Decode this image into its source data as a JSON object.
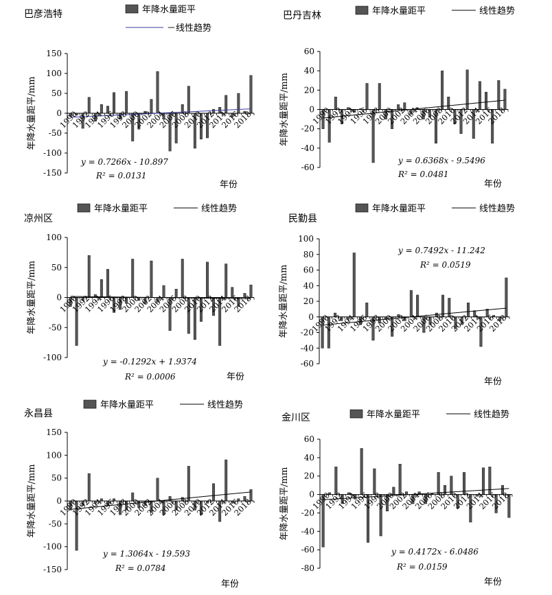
{
  "legend": {
    "bar_label": "年降水量距平",
    "trend_label": "线性趋势",
    "trend_label_alt": "－线性趋势"
  },
  "chart_data": [
    {
      "type": "bar",
      "title": "巴彦浩特",
      "xlabel": "年份",
      "ylabel": "年降水量距平/mm",
      "ylim": [
        -150,
        150
      ],
      "yticks": [
        150,
        100,
        50,
        0,
        -50,
        -100,
        -150
      ],
      "xtick_labels": [
        "1990",
        "1992",
        "1994",
        "1996",
        "1998",
        "2000",
        "2002",
        "2004",
        "2006",
        "2008",
        "2010",
        "2012",
        "2014",
        "2016",
        "2018"
      ],
      "years": [
        1990,
        1991,
        1992,
        1993,
        1994,
        1995,
        1996,
        1997,
        1998,
        1999,
        2000,
        2001,
        2002,
        2003,
        2004,
        2005,
        2006,
        2007,
        2008,
        2009,
        2010,
        2011,
        2012,
        2013,
        2014,
        2015,
        2016,
        2017,
        2018,
        2019
      ],
      "values": [
        -8,
        -5,
        -38,
        40,
        -20,
        22,
        18,
        52,
        -15,
        55,
        -70,
        -40,
        5,
        35,
        105,
        -15,
        -95,
        -75,
        22,
        68,
        -88,
        -65,
        -62,
        10,
        15,
        45,
        -10,
        50,
        5,
        95
      ],
      "equation": "y = 0.7266x - 10.897",
      "r2": "R² = 0.0131",
      "trend": {
        "slope": 0.7266,
        "intercept": -10.897
      },
      "legend_trend_dash": true
    },
    {
      "type": "bar",
      "title": "巴丹吉林",
      "xlabel": "年份",
      "ylabel": "年降水量距平/mm",
      "ylim": [
        -60,
        60
      ],
      "yticks": [
        60,
        40,
        20,
        0,
        -20,
        -40,
        -60
      ],
      "xtick_labels": [
        "1990",
        "1992",
        "1994",
        "1996",
        "1998",
        "2000",
        "2002",
        "2004",
        "2006",
        "2008",
        "2010",
        "2012",
        "2014",
        "2016",
        "2018"
      ],
      "years": [
        1990,
        1991,
        1992,
        1993,
        1994,
        1995,
        1996,
        1997,
        1998,
        1999,
        2000,
        2001,
        2002,
        2003,
        2004,
        2005,
        2006,
        2007,
        2008,
        2009,
        2010,
        2011,
        2012,
        2013,
        2014,
        2015,
        2016,
        2017,
        2018,
        2019
      ],
      "values": [
        -20,
        -34,
        13,
        -15,
        2,
        -3,
        1,
        27,
        -55,
        27,
        -10,
        -20,
        5,
        7,
        -5,
        2,
        -10,
        -8,
        -35,
        40,
        13,
        -15,
        -25,
        41,
        -30,
        29,
        18,
        -35,
        30,
        21
      ],
      "equation": "y = 0.6368x - 9.5496",
      "r2": "R² = 0.0481",
      "trend": {
        "slope": 0.6368,
        "intercept": -9.5496
      },
      "legend_trend_dash": false
    },
    {
      "type": "bar",
      "title": "凉州区",
      "xlabel": "年份",
      "ylabel": "年降水量距平/mm",
      "ylim": [
        -100,
        100
      ],
      "yticks": [
        100,
        50,
        0,
        -50,
        -100
      ],
      "xtick_labels": [
        "1990",
        "1992",
        "1994",
        "1996",
        "1998",
        "2000",
        "2002",
        "2004",
        "2006",
        "2008",
        "2010",
        "2012",
        "2014",
        "2016",
        "2018"
      ],
      "years": [
        1990,
        1991,
        1992,
        1993,
        1994,
        1995,
        1996,
        1997,
        1998,
        1999,
        2000,
        2001,
        2002,
        2003,
        2004,
        2005,
        2006,
        2007,
        2008,
        2009,
        2010,
        2011,
        2012,
        2013,
        2014,
        2015,
        2016,
        2017,
        2018,
        2019
      ],
      "values": [
        -15,
        -80,
        -5,
        70,
        5,
        30,
        47,
        -25,
        -20,
        -10,
        64,
        -5,
        -10,
        61,
        -8,
        20,
        -55,
        14,
        64,
        -60,
        -70,
        -40,
        59,
        -30,
        -80,
        56,
        17,
        -15,
        7,
        21
      ],
      "equation": "y = -0.1292x + 1.9374",
      "r2": "R² = 0.0006",
      "trend": {
        "slope": -0.1292,
        "intercept": 1.9374
      },
      "legend_trend_dash": false
    },
    {
      "type": "bar",
      "title": "民勤县",
      "xlabel": "年份",
      "ylabel": "年降水量距平/mm",
      "ylim": [
        -60,
        100
      ],
      "yticks": [
        100,
        80,
        60,
        40,
        20,
        0,
        -20,
        -40,
        -60
      ],
      "xtick_labels": [
        "1990",
        "1992",
        "1994",
        "1996",
        "1998",
        "2000",
        "2002",
        "2004",
        "2006",
        "2008",
        "2010",
        "2012",
        "2014",
        "2016",
        "2018"
      ],
      "years": [
        1990,
        1991,
        1992,
        1993,
        1994,
        1995,
        1996,
        1997,
        1998,
        1999,
        2000,
        2001,
        2002,
        2003,
        2004,
        2005,
        2006,
        2007,
        2008,
        2009,
        2010,
        2011,
        2012,
        2013,
        2014,
        2015,
        2016,
        2017,
        2018,
        2019
      ],
      "values": [
        -40,
        -40,
        5,
        -5,
        -3,
        82,
        -10,
        18,
        -30,
        -8,
        -3,
        -25,
        3,
        -5,
        34,
        28,
        -20,
        -10,
        5,
        28,
        24,
        -15,
        -10,
        18,
        8,
        -38,
        10,
        2,
        -5,
        50
      ],
      "equation": "y = 0.7492x - 11.242",
      "r2": "R² = 0.0519",
      "trend": {
        "slope": 0.7492,
        "intercept": -11.242
      },
      "legend_trend_dash": false
    },
    {
      "type": "bar",
      "title": "永昌县",
      "xlabel": "年份",
      "ylabel": "年降水量距平/mm",
      "ylim": [
        -150,
        150
      ],
      "yticks": [
        150,
        100,
        50,
        0,
        -50,
        -100,
        -150
      ],
      "xtick_labels": [
        "1990",
        "1992",
        "1994",
        "1996",
        "1998",
        "2000",
        "2002",
        "2004",
        "2006",
        "2008",
        "2010",
        "2012",
        "2014",
        "2016",
        "2018"
      ],
      "years": [
        1990,
        1991,
        1992,
        1993,
        1994,
        1995,
        1996,
        1997,
        1998,
        1999,
        2000,
        2001,
        2002,
        2003,
        2004,
        2005,
        2006,
        2007,
        2008,
        2009,
        2010,
        2011,
        2012,
        2013,
        2014,
        2015,
        2016,
        2017,
        2018,
        2019
      ],
      "values": [
        -20,
        -108,
        -10,
        60,
        -5,
        5,
        -10,
        5,
        -30,
        -20,
        18,
        -15,
        -10,
        -25,
        50,
        -30,
        10,
        -20,
        8,
        76,
        -20,
        -30,
        -5,
        38,
        -45,
        90,
        -5,
        5,
        10,
        25
      ],
      "equation": "y = 1.3064x - 19.593",
      "r2": "R² = 0.0784",
      "trend": {
        "slope": 1.3064,
        "intercept": -19.593
      },
      "legend_trend_dash": false
    },
    {
      "type": "bar",
      "title": "金川区",
      "xlabel": "年份",
      "ylabel": "年降水量距平/mm",
      "ylim": [
        -80,
        60
      ],
      "yticks": [
        60,
        40,
        20,
        0,
        -20,
        -40,
        -60,
        -80
      ],
      "xtick_labels": [
        "1990",
        "1992",
        "1994",
        "1996",
        "1998",
        "2000",
        "2002",
        "2004",
        "2006",
        "2008",
        "2010",
        "2012",
        "2014",
        "2016",
        "2018"
      ],
      "years": [
        1990,
        1991,
        1992,
        1993,
        1994,
        1995,
        1996,
        1997,
        1998,
        1999,
        2000,
        2001,
        2002,
        2003,
        2004,
        2005,
        2006,
        2007,
        2008,
        2009,
        2010,
        2011,
        2012,
        2013,
        2014,
        2015,
        2016,
        2017,
        2018,
        2019
      ],
      "values": [
        -57,
        2,
        30,
        -10,
        2,
        -5,
        50,
        -52,
        28,
        -45,
        -18,
        8,
        33,
        3,
        -10,
        3,
        -10,
        1,
        24,
        10,
        20,
        -15,
        24,
        -30,
        -2,
        29,
        30,
        -20,
        10,
        -25
      ],
      "equation": "y = 0.4172x - 6.0486",
      "r2": "R² = 0.0159",
      "trend": {
        "slope": 0.4172,
        "intercept": -6.0486
      },
      "legend_trend_dash": false
    }
  ]
}
